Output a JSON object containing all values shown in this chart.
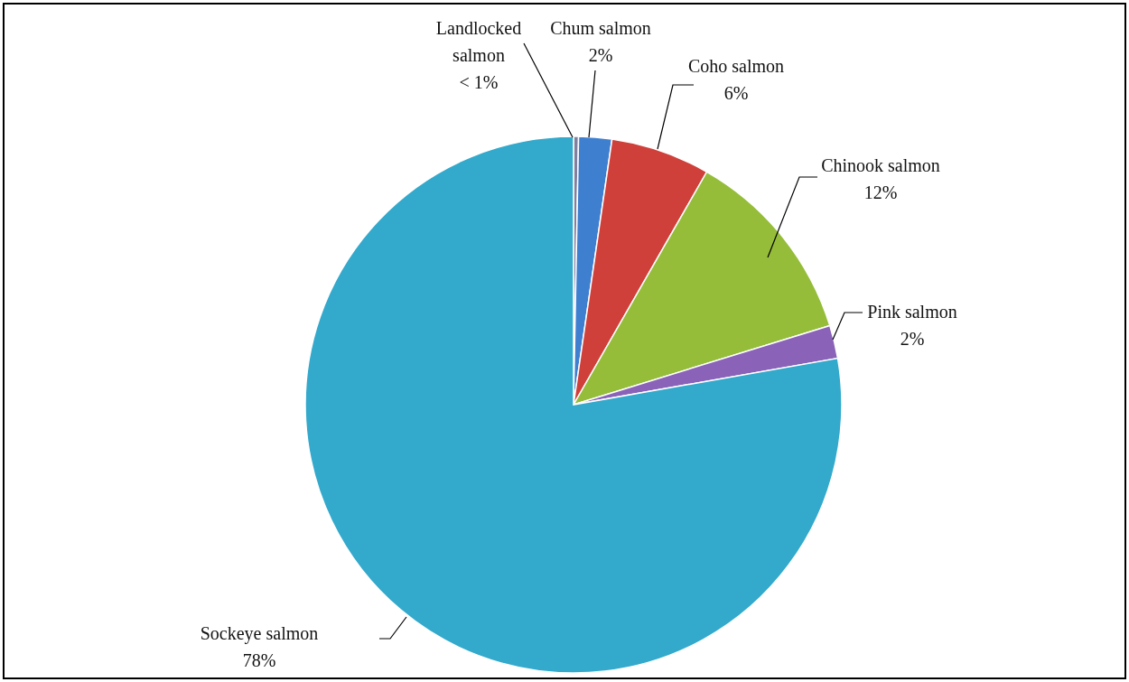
{
  "chart_data": {
    "type": "pie",
    "categories": [
      "Landlocked salmon",
      "Chum salmon",
      "Coho salmon",
      "Chinook salmon",
      "Pink salmon",
      "Sockeye salmon"
    ],
    "values": [
      0.3,
      2,
      6,
      12,
      2,
      78
    ],
    "value_labels": [
      "< 1%",
      "2%",
      "6%",
      "12%",
      "2%",
      "78%"
    ],
    "colors": [
      "#7f7f9f",
      "#3f7fd0",
      "#d0403a",
      "#95bd3a",
      "#8a62b8",
      "#33a9cc"
    ]
  }
}
